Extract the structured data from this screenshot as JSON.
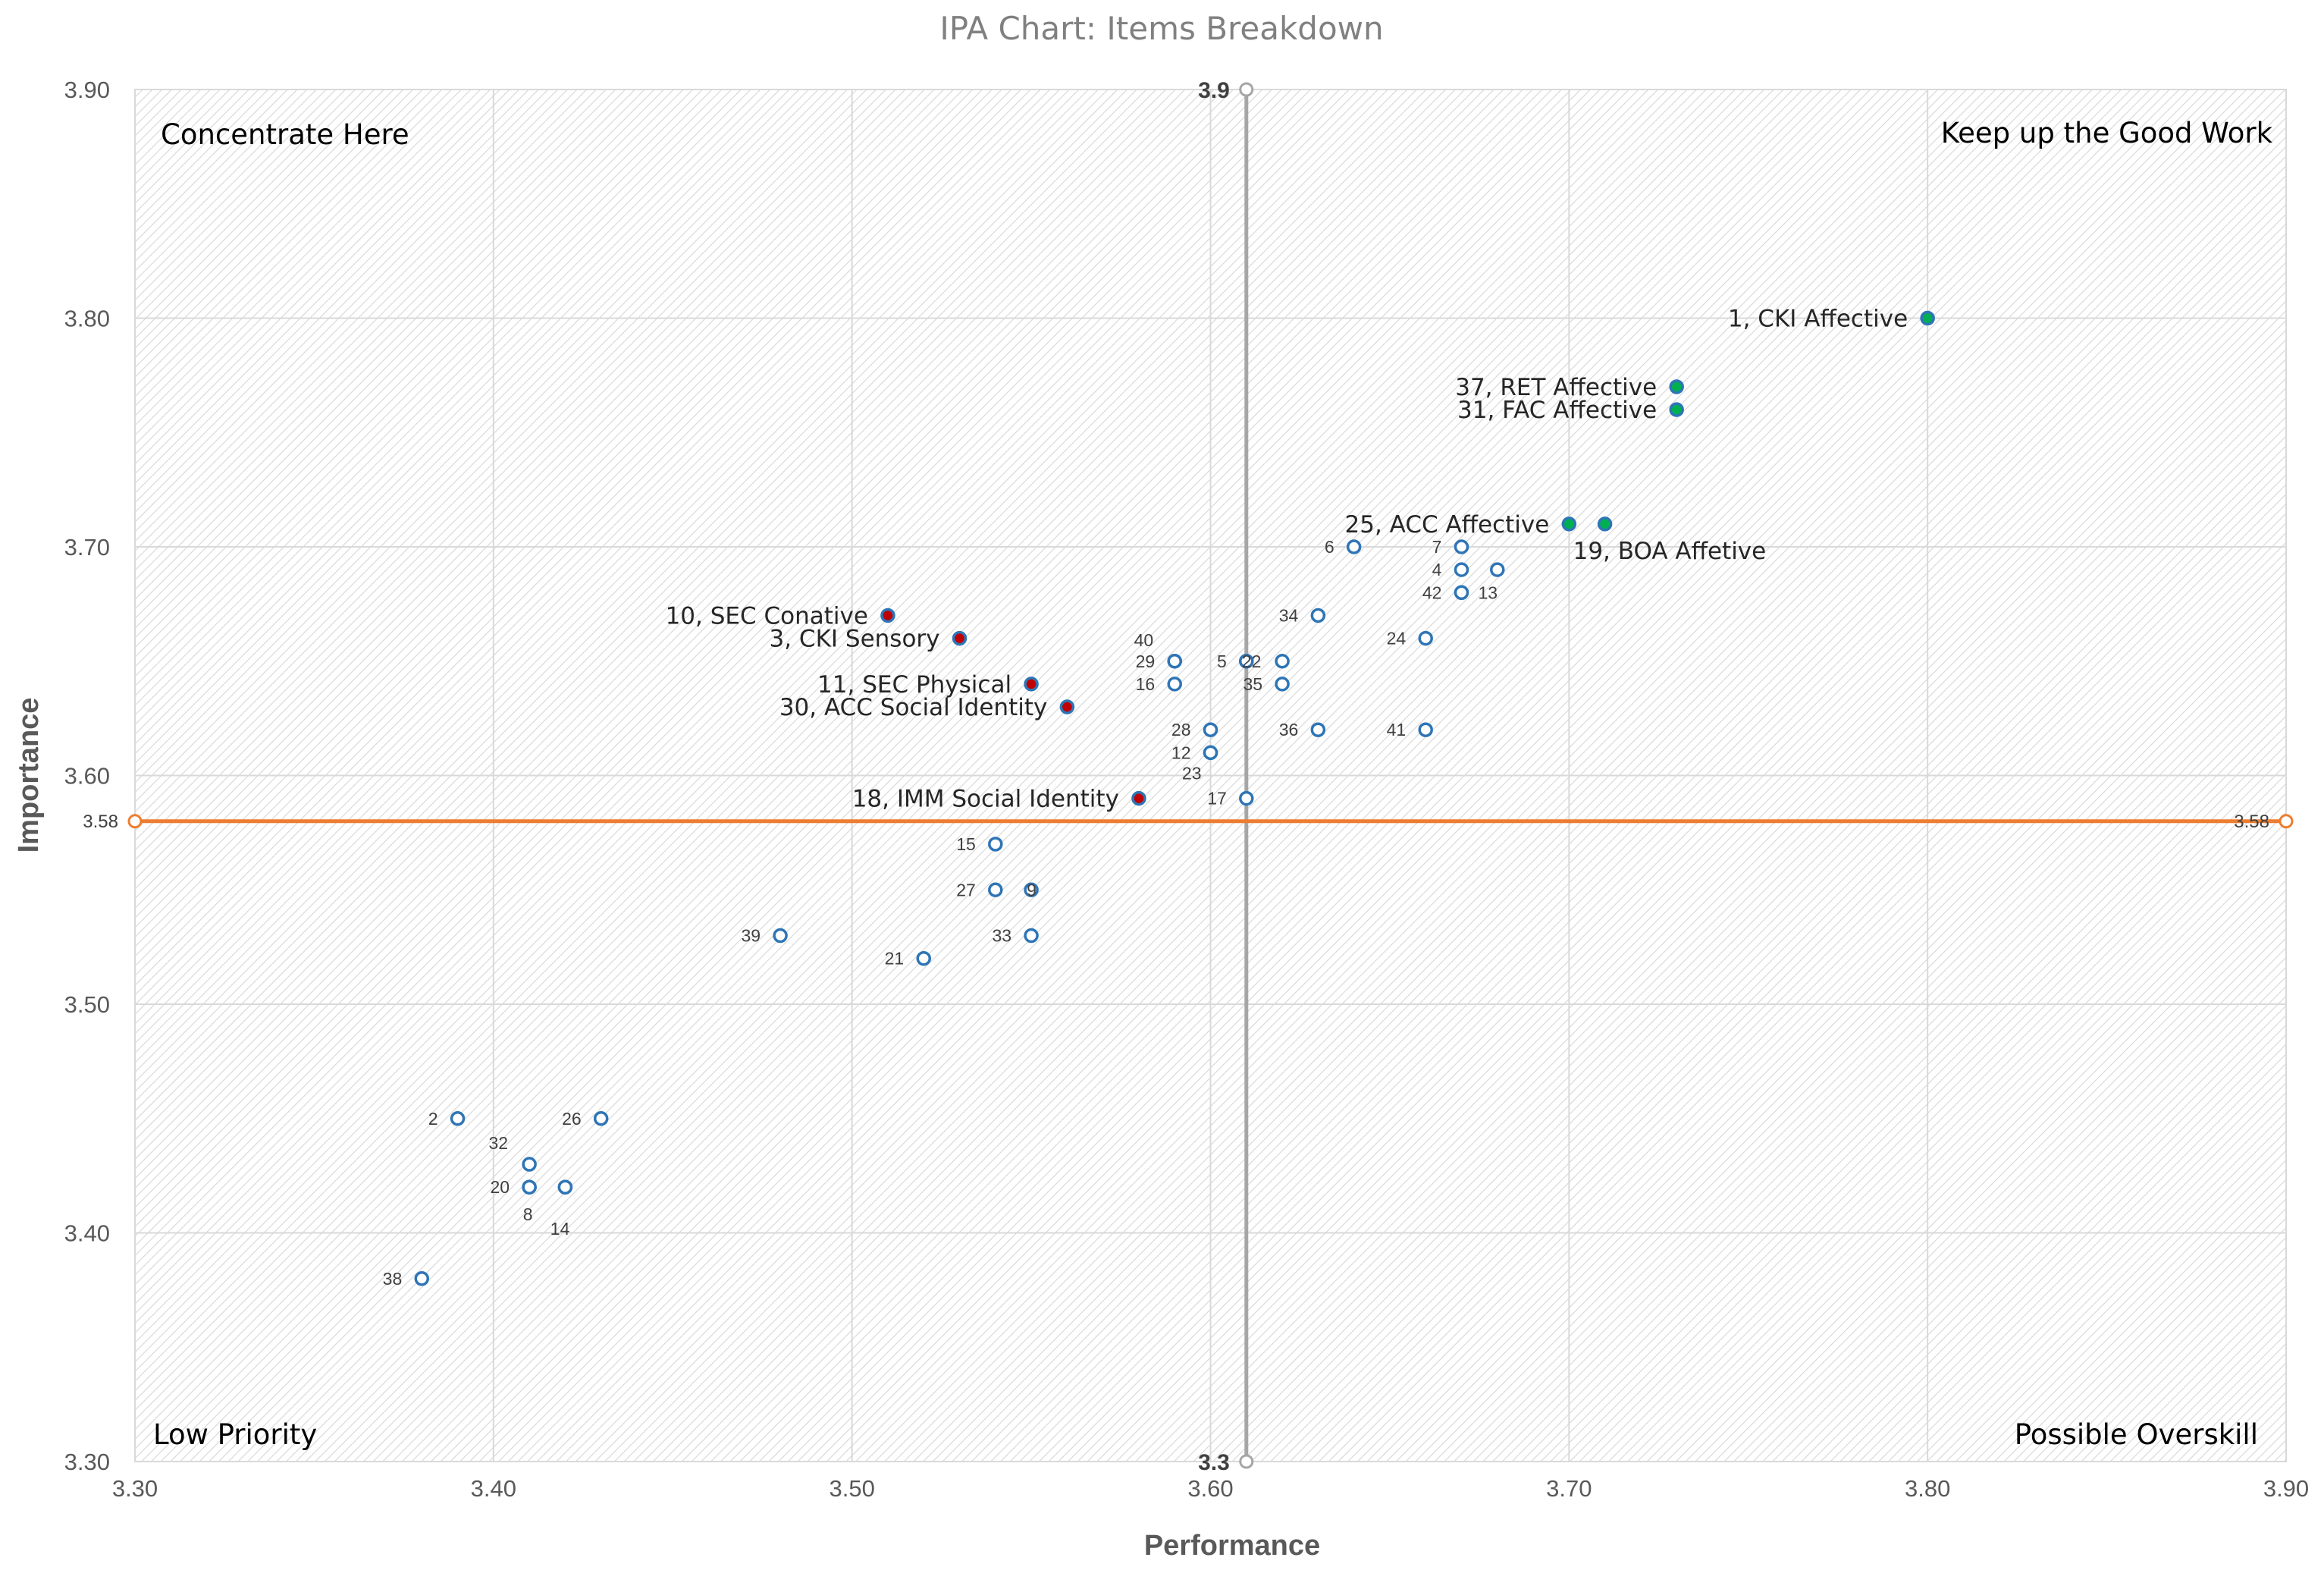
{
  "chart_data": {
    "type": "scatter",
    "title": "IPA Chart: Items Breakdown",
    "xlabel": "Performance",
    "ylabel": "Importance",
    "xlim": [
      3.3,
      3.9
    ],
    "ylim": [
      3.3,
      3.9
    ],
    "x_ticks": [
      "3.30",
      "3.40",
      "3.50",
      "3.60",
      "3.70",
      "3.80",
      "3.90"
    ],
    "y_ticks": [
      "3.30",
      "3.40",
      "3.50",
      "3.60",
      "3.70",
      "3.80",
      "3.90"
    ],
    "grid": true,
    "reference_lines": {
      "vertical": {
        "value": 3.61,
        "top_label": "3.9",
        "bottom_label": "3.3",
        "color": "#a6a6a6"
      },
      "horizontal": {
        "value": 3.58,
        "left_label": "3.58",
        "right_label": "3.58",
        "color": "#ed7d31"
      }
    },
    "quadrants": {
      "top_left": "Concentrate Here",
      "top_right": "Keep up the Good Work",
      "bottom_left": "Low Priority",
      "bottom_right": "Possible Overskill"
    },
    "colors": {
      "hollow_marker": "#2e75b6",
      "green_fill": "#00b050",
      "red_fill": "#c00000",
      "marker_border": "#2e75b6"
    },
    "points": [
      {
        "label": "1, CKI Affective",
        "x": 3.8,
        "y": 3.8,
        "style": "green",
        "pos": "left"
      },
      {
        "label": "37, RET Affective",
        "x": 3.73,
        "y": 3.77,
        "style": "green",
        "pos": "left"
      },
      {
        "label": "31, FAC Affective",
        "x": 3.73,
        "y": 3.76,
        "style": "green",
        "pos": "left"
      },
      {
        "label": "25, ACC Affective",
        "x": 3.7,
        "y": 3.71,
        "style": "green",
        "pos": "left"
      },
      {
        "label": "19, BOA Affetive",
        "x": 3.71,
        "y": 3.71,
        "style": "green",
        "pos": "below"
      },
      {
        "label": "10, SEC Conative",
        "x": 3.51,
        "y": 3.67,
        "style": "red",
        "pos": "left"
      },
      {
        "label": "3, CKI Sensory",
        "x": 3.53,
        "y": 3.66,
        "style": "red",
        "pos": "left"
      },
      {
        "label": "11, SEC Physical",
        "x": 3.55,
        "y": 3.64,
        "style": "red",
        "pos": "left"
      },
      {
        "label": "30, ACC Social Identity",
        "x": 3.56,
        "y": 3.63,
        "style": "red",
        "pos": "left"
      },
      {
        "label": "18, IMM Social Identity",
        "x": 3.58,
        "y": 3.59,
        "style": "red",
        "pos": "left"
      },
      {
        "label": "6",
        "x": 3.64,
        "y": 3.7,
        "style": "hollow",
        "pos": "left"
      },
      {
        "label": "7",
        "x": 3.67,
        "y": 3.7,
        "style": "hollow",
        "pos": "left"
      },
      {
        "label": "4",
        "x": 3.67,
        "y": 3.69,
        "style": "hollow",
        "pos": "left"
      },
      {
        "label": "",
        "x": 3.68,
        "y": 3.69,
        "style": "hollow",
        "pos": "none"
      },
      {
        "label": "42",
        "x": 3.67,
        "y": 3.68,
        "style": "hollow",
        "pos": "left"
      },
      {
        "label": "13",
        "x": 3.67,
        "y": 3.68,
        "style": "hollow",
        "pos": "right"
      },
      {
        "label": "34",
        "x": 3.63,
        "y": 3.67,
        "style": "hollow",
        "pos": "left"
      },
      {
        "label": "24",
        "x": 3.66,
        "y": 3.66,
        "style": "hollow",
        "pos": "left"
      },
      {
        "label": "40",
        "x": 3.59,
        "y": 3.65,
        "style": "hollow",
        "pos": "upleft"
      },
      {
        "label": "29",
        "x": 3.59,
        "y": 3.65,
        "style": "hollow",
        "pos": "left"
      },
      {
        "label": "5",
        "x": 3.61,
        "y": 3.65,
        "style": "hollow",
        "pos": "left"
      },
      {
        "label": "22",
        "x": 3.61,
        "y": 3.65,
        "style": "hollow",
        "pos": "overlap"
      },
      {
        "label": "",
        "x": 3.62,
        "y": 3.65,
        "style": "hollow",
        "pos": "none"
      },
      {
        "label": "16",
        "x": 3.59,
        "y": 3.64,
        "style": "hollow",
        "pos": "left"
      },
      {
        "label": "35",
        "x": 3.62,
        "y": 3.64,
        "style": "hollow",
        "pos": "left"
      },
      {
        "label": "28",
        "x": 3.6,
        "y": 3.62,
        "style": "hollow",
        "pos": "left"
      },
      {
        "label": "36",
        "x": 3.63,
        "y": 3.62,
        "style": "hollow",
        "pos": "left"
      },
      {
        "label": "41",
        "x": 3.66,
        "y": 3.62,
        "style": "hollow",
        "pos": "left"
      },
      {
        "label": "12",
        "x": 3.6,
        "y": 3.61,
        "style": "hollow",
        "pos": "left"
      },
      {
        "label": "23",
        "x": 3.6,
        "y": 3.61,
        "style": "hollow",
        "pos": "belowleft"
      },
      {
        "label": "17",
        "x": 3.61,
        "y": 3.59,
        "style": "hollow",
        "pos": "left"
      },
      {
        "label": "15",
        "x": 3.54,
        "y": 3.57,
        "style": "hollow",
        "pos": "left"
      },
      {
        "label": "27",
        "x": 3.54,
        "y": 3.55,
        "style": "hollow",
        "pos": "left"
      },
      {
        "label": "9",
        "x": 3.55,
        "y": 3.55,
        "style": "hollow",
        "pos": "overlap"
      },
      {
        "label": "39",
        "x": 3.48,
        "y": 3.53,
        "style": "hollow",
        "pos": "left"
      },
      {
        "label": "33",
        "x": 3.55,
        "y": 3.53,
        "style": "hollow",
        "pos": "left"
      },
      {
        "label": "21",
        "x": 3.52,
        "y": 3.52,
        "style": "hollow",
        "pos": "left"
      },
      {
        "label": "2",
        "x": 3.39,
        "y": 3.45,
        "style": "hollow",
        "pos": "left"
      },
      {
        "label": "26",
        "x": 3.43,
        "y": 3.45,
        "style": "hollow",
        "pos": "left"
      },
      {
        "label": "32",
        "x": 3.41,
        "y": 3.43,
        "style": "hollow",
        "pos": "upleft"
      },
      {
        "label": "20",
        "x": 3.41,
        "y": 3.42,
        "style": "hollow",
        "pos": "left"
      },
      {
        "label": "",
        "x": 3.42,
        "y": 3.42,
        "style": "hollow",
        "pos": "none"
      },
      {
        "label": "8",
        "x": 3.41,
        "y": 3.42,
        "style": "hollow",
        "pos": "below"
      },
      {
        "label": "14",
        "x": 3.42,
        "y": 3.42,
        "style": "hollow",
        "pos": "belowleft2"
      },
      {
        "label": "38",
        "x": 3.38,
        "y": 3.38,
        "style": "hollow",
        "pos": "left"
      }
    ]
  }
}
